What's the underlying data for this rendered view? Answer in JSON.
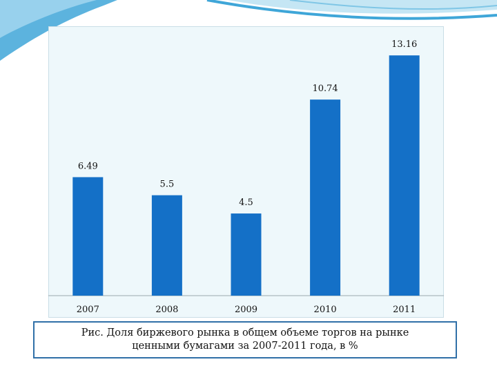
{
  "chart_data": {
    "type": "bar",
    "categories": [
      "2007",
      "2008",
      "2009",
      "2010",
      "2011"
    ],
    "values": [
      6.49,
      5.5,
      4.5,
      10.74,
      13.16
    ],
    "data_labels": [
      "6.49",
      "5.5",
      "4.5",
      "10.74",
      "13.16"
    ],
    "ylim": [
      0,
      14
    ],
    "grid": false,
    "legend": "none",
    "bar_color": "#1470c7"
  },
  "caption": {
    "line1": "Рис. Доля биржевого рынка в общем объеме торгов на рынке",
    "line2": "ценными бумагами за 2007-2011 года, в %"
  },
  "colors": {
    "panel_background": "#eef8fb",
    "caption_border": "#2f6fa7",
    "decor_wave": "#3fa6d8"
  }
}
